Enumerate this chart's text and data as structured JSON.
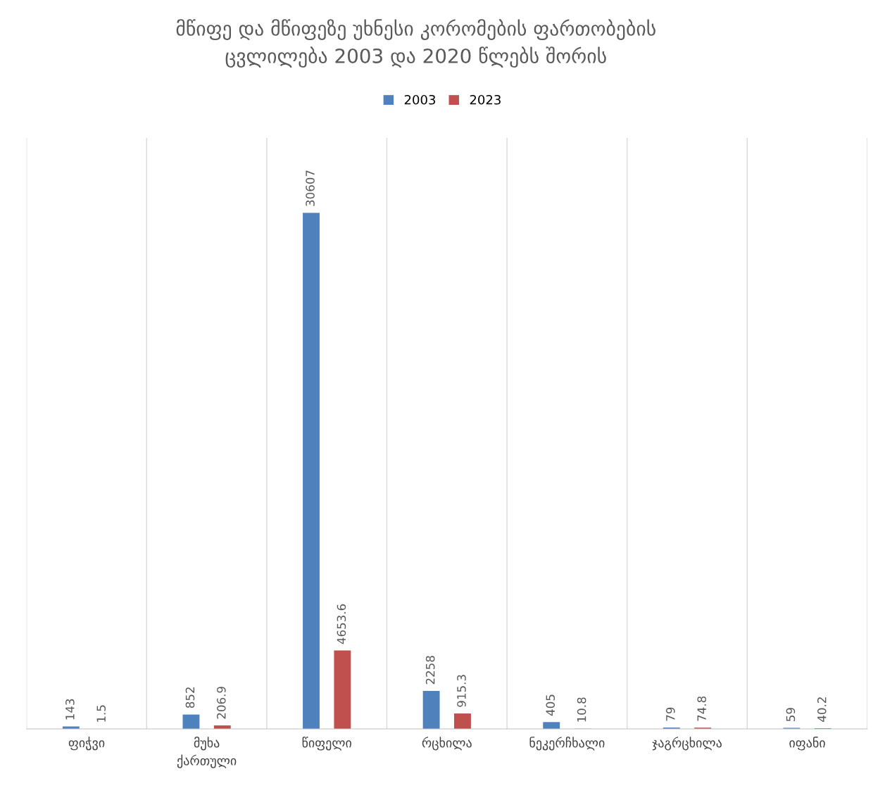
{
  "chart_data": {
    "type": "bar",
    "title": "მწიფე და მწიფეზე უხნესი კორომების ფართობების\nცვლილება 2003 და 2020 წლებს შორის",
    "categories": [
      "ფიჭვი",
      "მუხა ქართული",
      "წიფელი",
      "რცხილა",
      "ნეკერჩხალი",
      "ჯაგრცხილა",
      "იფანი"
    ],
    "series": [
      {
        "name": "2003",
        "color": "#4f81bd",
        "values": [
          143,
          852,
          30607,
          2258,
          405,
          79,
          59
        ]
      },
      {
        "name": "2023",
        "color": "#c0504d",
        "values": [
          1.5,
          206.9,
          4653.6,
          915.3,
          10.8,
          74.8,
          40.2
        ]
      }
    ],
    "data_labels": true,
    "legend": "top",
    "grid": "x",
    "tick_labels": "x"
  }
}
